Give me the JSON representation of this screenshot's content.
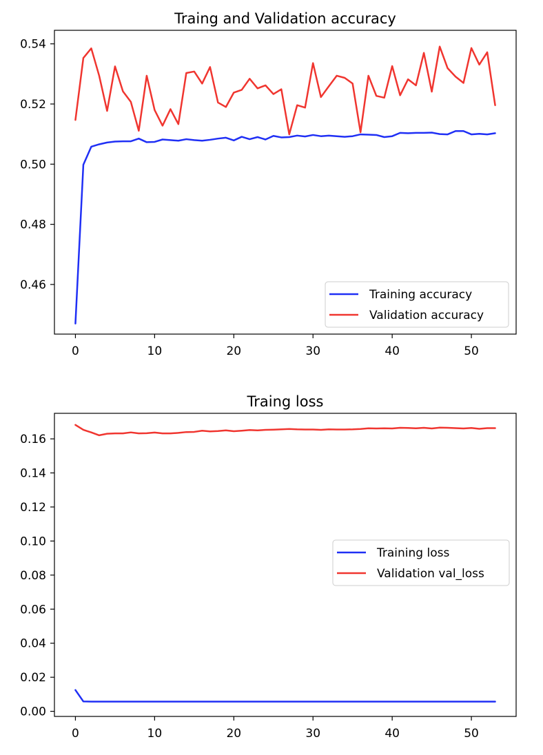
{
  "chart_data": [
    {
      "type": "line",
      "title": "Traing and Validation accuracy",
      "xlabel": "",
      "ylabel": "",
      "xlim": [
        -2.65,
        55.65
      ],
      "ylim": [
        0.4435,
        0.5445
      ],
      "xticks": [
        0,
        10,
        20,
        30,
        40,
        50
      ],
      "yticks": [
        0.46,
        0.48,
        0.5,
        0.52,
        0.54
      ],
      "ytick_labels": [
        "0.46",
        "0.48",
        "0.50",
        "0.52",
        "0.54"
      ],
      "grid": false,
      "legend_position": "lower-right",
      "x": [
        0,
        1,
        2,
        3,
        4,
        5,
        6,
        7,
        8,
        9,
        10,
        11,
        12,
        13,
        14,
        15,
        16,
        17,
        18,
        19,
        20,
        21,
        22,
        23,
        24,
        25,
        26,
        27,
        28,
        29,
        30,
        31,
        32,
        33,
        34,
        35,
        36,
        37,
        38,
        39,
        40,
        41,
        42,
        43,
        44,
        45,
        46,
        47,
        48,
        49,
        50,
        51,
        52,
        53
      ],
      "series": [
        {
          "name": "Training accuracy",
          "color": "#1f2ff5",
          "values": [
            0.447,
            0.4998,
            0.5058,
            0.5066,
            0.5072,
            0.5075,
            0.5076,
            0.5076,
            0.5085,
            0.5073,
            0.5074,
            0.5082,
            0.508,
            0.5078,
            0.5083,
            0.508,
            0.5078,
            0.5081,
            0.5085,
            0.5088,
            0.5079,
            0.5091,
            0.5083,
            0.509,
            0.5082,
            0.5094,
            0.5089,
            0.509,
            0.5095,
            0.5092,
            0.5097,
            0.5093,
            0.5095,
            0.5093,
            0.5091,
            0.5093,
            0.5099,
            0.5098,
            0.5097,
            0.509,
            0.5093,
            0.5104,
            0.5103,
            0.5104,
            0.5104,
            0.5105,
            0.51,
            0.5099,
            0.511,
            0.511,
            0.5099,
            0.5101,
            0.5099,
            0.5103
          ]
        },
        {
          "name": "Validation accuracy",
          "color": "#f0352f",
          "values": [
            0.5147,
            0.5353,
            0.5385,
            0.5294,
            0.5177,
            0.5325,
            0.5242,
            0.5207,
            0.5111,
            0.5294,
            0.518,
            0.5128,
            0.5183,
            0.5133,
            0.5303,
            0.5308,
            0.5268,
            0.5323,
            0.5205,
            0.519,
            0.5238,
            0.5247,
            0.5284,
            0.5252,
            0.5262,
            0.5233,
            0.5249,
            0.5099,
            0.5196,
            0.5188,
            0.5336,
            0.5223,
            0.5259,
            0.5294,
            0.5287,
            0.5268,
            0.5106,
            0.5294,
            0.5227,
            0.5221,
            0.5326,
            0.5229,
            0.5282,
            0.5262,
            0.537,
            0.5241,
            0.5391,
            0.5319,
            0.5291,
            0.527,
            0.5386,
            0.5331,
            0.5372,
            0.5196
          ]
        }
      ]
    },
    {
      "type": "line",
      "title": "Traing loss",
      "xlabel": "",
      "ylabel": "",
      "xlim": [
        -2.65,
        55.65
      ],
      "ylim": [
        -0.003,
        0.175
      ],
      "xticks": [
        0,
        10,
        20,
        30,
        40,
        50
      ],
      "yticks": [
        0.0,
        0.02,
        0.04,
        0.06,
        0.08,
        0.1,
        0.12,
        0.14,
        0.16
      ],
      "ytick_labels": [
        "0.00",
        "0.02",
        "0.04",
        "0.06",
        "0.08",
        "0.10",
        "0.12",
        "0.14",
        "0.16"
      ],
      "grid": false,
      "legend_position": "center-right",
      "x": [
        0,
        1,
        2,
        3,
        4,
        5,
        6,
        7,
        8,
        9,
        10,
        11,
        12,
        13,
        14,
        15,
        16,
        17,
        18,
        19,
        20,
        21,
        22,
        23,
        24,
        25,
        26,
        27,
        28,
        29,
        30,
        31,
        32,
        33,
        34,
        35,
        36,
        37,
        38,
        39,
        40,
        41,
        42,
        43,
        44,
        45,
        46,
        47,
        48,
        49,
        50,
        51,
        52,
        53
      ],
      "series": [
        {
          "name": "Training loss",
          "color": "#1f2ff5",
          "values": [
            0.0125,
            0.0058,
            0.0057,
            0.0057,
            0.0057,
            0.0057,
            0.0057,
            0.0057,
            0.0057,
            0.0057,
            0.0057,
            0.0057,
            0.0057,
            0.0057,
            0.0057,
            0.0057,
            0.0057,
            0.0057,
            0.0057,
            0.0057,
            0.0057,
            0.0057,
            0.0057,
            0.0057,
            0.0057,
            0.0057,
            0.0057,
            0.0057,
            0.0057,
            0.0057,
            0.0057,
            0.0057,
            0.0057,
            0.0057,
            0.0057,
            0.0057,
            0.0057,
            0.0057,
            0.0057,
            0.0057,
            0.0057,
            0.0057,
            0.0057,
            0.0057,
            0.0057,
            0.0057,
            0.0057,
            0.0057,
            0.0057,
            0.0057,
            0.0057,
            0.0057,
            0.0057,
            0.0057
          ]
        },
        {
          "name": "Validation val_loss",
          "color": "#f0352f",
          "values": [
            0.1682,
            0.1653,
            0.1638,
            0.1621,
            0.163,
            0.1632,
            0.1632,
            0.1638,
            0.1632,
            0.1633,
            0.1637,
            0.1632,
            0.1632,
            0.1635,
            0.164,
            0.1641,
            0.1648,
            0.1644,
            0.1646,
            0.165,
            0.1645,
            0.1648,
            0.1652,
            0.165,
            0.1653,
            0.1654,
            0.1656,
            0.1658,
            0.1656,
            0.1655,
            0.1655,
            0.1653,
            0.1656,
            0.1655,
            0.1655,
            0.1656,
            0.1658,
            0.1662,
            0.1661,
            0.1662,
            0.1661,
            0.1665,
            0.1664,
            0.1662,
            0.1665,
            0.1661,
            0.1666,
            0.1665,
            0.1663,
            0.1661,
            0.1664,
            0.1659,
            0.1663,
            0.1663
          ]
        }
      ]
    }
  ]
}
